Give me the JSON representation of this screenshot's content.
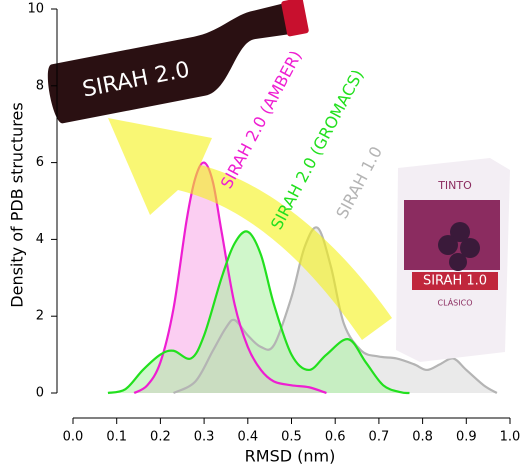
{
  "chart_data": {
    "type": "density",
    "xlabel": "RMSD (nm)",
    "ylabel": "Density of PDB structures",
    "xlim": [
      0,
      1
    ],
    "ylim": [
      0,
      10
    ],
    "xticks": [
      {
        "value": 0,
        "label": "0.0"
      },
      0.1,
      0.2,
      0.3,
      0.4,
      0.5,
      0.6,
      0.7,
      0.8,
      0.9,
      {
        "value": 1,
        "label": "1.0"
      }
    ],
    "yticks": [
      0,
      2,
      4,
      6,
      8,
      10
    ],
    "series": [
      {
        "name": "SIRAH 1.0",
        "color": "#b4b4b4",
        "fill": "#d9d9d9",
        "x": [
          0.23,
          0.28,
          0.32,
          0.35,
          0.37,
          0.4,
          0.43,
          0.46,
          0.5,
          0.53,
          0.56,
          0.59,
          0.62,
          0.66,
          0.7,
          0.74,
          0.78,
          0.81,
          0.84,
          0.87,
          0.9,
          0.94,
          0.97
        ],
        "values": [
          0,
          0.3,
          1.1,
          1.7,
          1.9,
          1.5,
          1.2,
          1.25,
          2.5,
          3.8,
          4.3,
          3.3,
          1.8,
          1.1,
          0.95,
          0.9,
          0.75,
          0.6,
          0.75,
          0.9,
          0.6,
          0.2,
          0
        ]
      },
      {
        "name": "SIRAH 2.0 (AMBER)",
        "color": "#ee1ed2",
        "fill": "#f7a6e8",
        "x": [
          0.14,
          0.17,
          0.2,
          0.23,
          0.26,
          0.28,
          0.3,
          0.32,
          0.34,
          0.37,
          0.4,
          0.43,
          0.46,
          0.5,
          0.54,
          0.58
        ],
        "values": [
          0,
          0.2,
          0.8,
          2.2,
          4.5,
          5.6,
          6.0,
          5.5,
          4.2,
          2.3,
          1.2,
          0.6,
          0.3,
          0.2,
          0.15,
          0
        ]
      },
      {
        "name": "SIRAH 2.0 (GROMACS)",
        "color": "#22e01e",
        "fill": "#a9f0a0",
        "x": [
          0.08,
          0.12,
          0.16,
          0.2,
          0.23,
          0.27,
          0.3,
          0.34,
          0.37,
          0.4,
          0.43,
          0.46,
          0.5,
          0.54,
          0.58,
          0.63,
          0.67,
          0.71,
          0.75,
          0.77
        ],
        "values": [
          0,
          0.1,
          0.6,
          1.0,
          1.1,
          0.9,
          1.5,
          3.0,
          3.9,
          4.2,
          3.6,
          2.3,
          1.0,
          0.6,
          1.0,
          1.4,
          0.8,
          0.2,
          0.02,
          0
        ]
      }
    ],
    "annotations": [
      "SIRAH 2.0",
      "TINTO",
      "SIRAH 1.0",
      "CLÁSICO"
    ]
  }
}
